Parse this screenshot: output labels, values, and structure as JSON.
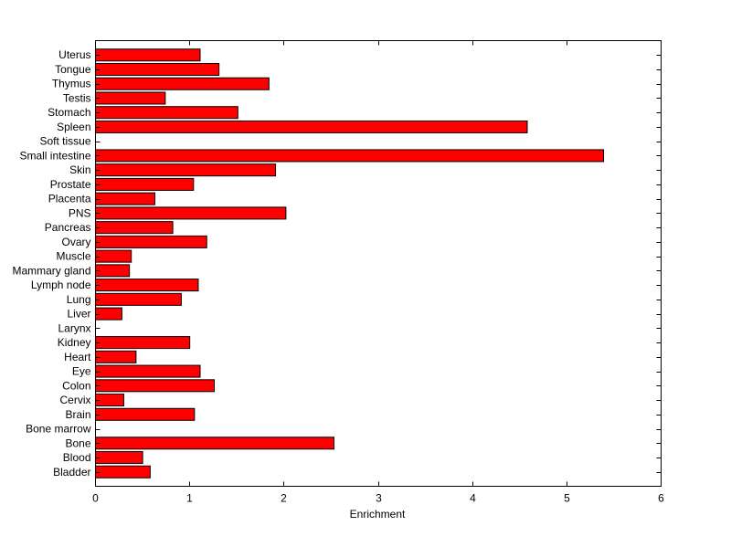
{
  "chart_data": {
    "type": "bar",
    "orientation": "horizontal",
    "title": "",
    "xlabel": "Enrichment",
    "ylabel": "",
    "xlim": [
      0,
      6
    ],
    "xticks": [
      0,
      1,
      2,
      3,
      4,
      5,
      6
    ],
    "grid": false,
    "bar_color": "#ff0000",
    "categories": [
      "Bladder",
      "Blood",
      "Bone",
      "Bone marrow",
      "Brain",
      "Cervix",
      "Colon",
      "Eye",
      "Heart",
      "Kidney",
      "Larynx",
      "Liver",
      "Lung",
      "Lymph node",
      "Mammary gland",
      "Muscle",
      "Ovary",
      "Pancreas",
      "PNS",
      "Placenta",
      "Prostate",
      "Skin",
      "Small intestine",
      "Soft tissue",
      "Spleen",
      "Stomach",
      "Testis",
      "Thymus",
      "Tongue",
      "Uterus"
    ],
    "values": [
      0.58,
      0.5,
      2.53,
      0,
      1.05,
      0.3,
      1.26,
      1.11,
      0.43,
      1.0,
      0,
      0.28,
      0.91,
      1.09,
      0.36,
      0.38,
      1.18,
      0.82,
      2.02,
      0.63,
      1.04,
      1.91,
      5.39,
      0,
      4.58,
      1.51,
      0.74,
      1.84,
      1.31,
      1.11
    ]
  }
}
